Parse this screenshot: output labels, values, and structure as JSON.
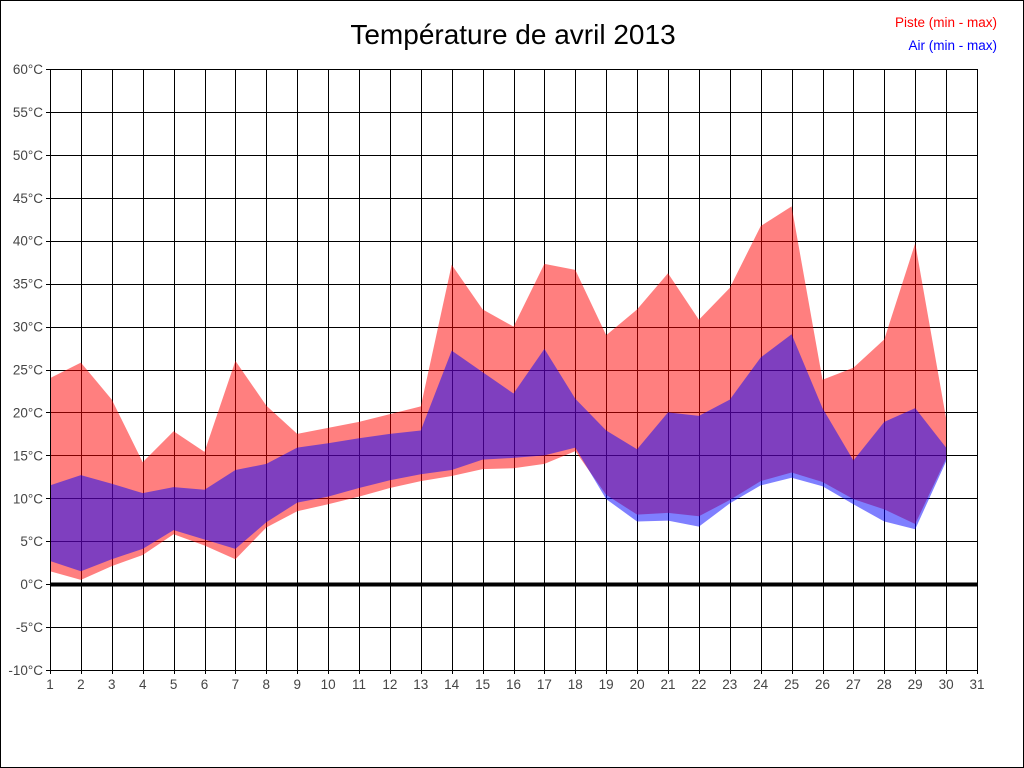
{
  "title": "Température de avril 2013",
  "legend": {
    "piste": "Piste (min - max)",
    "air": "Air (min - max)"
  },
  "colors": {
    "piste_line": "#ff0000",
    "air_line": "#0000ff",
    "piste_band": "rgba(255,0,0,0.5)",
    "air_band": "rgba(0,0,255,0.5)",
    "grid": "#000000",
    "zero_line": "#000000",
    "tick_label": "#454545",
    "border": "#000000"
  },
  "chart_data": {
    "type": "area",
    "title": "Température de avril 2013",
    "xlabel": "",
    "ylabel": "",
    "xlim": [
      1,
      31
    ],
    "ylim": [
      -10,
      60
    ],
    "grid": true,
    "zero_line": 0,
    "legend_position": "top-right",
    "x_ticks": [
      "1",
      "2",
      "3",
      "4",
      "5",
      "6",
      "7",
      "8",
      "9",
      "10",
      "11",
      "12",
      "13",
      "14",
      "15",
      "16",
      "17",
      "18",
      "19",
      "20",
      "21",
      "22",
      "23",
      "24",
      "25",
      "26",
      "27",
      "28",
      "29",
      "30",
      "31"
    ],
    "y_ticks": [
      {
        "value": 60,
        "label": "60°C"
      },
      {
        "value": 55,
        "label": "55°C"
      },
      {
        "value": 50,
        "label": "50°C"
      },
      {
        "value": 45,
        "label": "45°C"
      },
      {
        "value": 40,
        "label": "40°C"
      },
      {
        "value": 35,
        "label": "35°C"
      },
      {
        "value": 30,
        "label": "30°C"
      },
      {
        "value": 25,
        "label": "25°C"
      },
      {
        "value": 20,
        "label": "20°C"
      },
      {
        "value": 15,
        "label": "15°C"
      },
      {
        "value": 10,
        "label": "10°C"
      },
      {
        "value": 5,
        "label": "5°C"
      },
      {
        "value": 0,
        "label": "0°C"
      },
      {
        "value": -5,
        "label": "-5°C"
      },
      {
        "value": -10,
        "label": "-10°C"
      }
    ],
    "days": [
      1,
      2,
      3,
      4,
      5,
      6,
      7,
      8,
      9,
      10,
      11,
      12,
      13,
      14,
      15,
      16,
      17,
      18,
      19,
      20,
      21,
      22,
      23,
      24,
      25,
      26,
      27,
      28,
      29,
      30
    ],
    "series": [
      {
        "name": "Piste (min - max)",
        "min": [
          1.5,
          0.5,
          2.1,
          3.4,
          5.8,
          4.5,
          2.9,
          6.6,
          8.5,
          9.3,
          10.2,
          11.2,
          12.0,
          12.6,
          13.4,
          13.5,
          14.0,
          15.5,
          10.4,
          8.1,
          8.3,
          7.9,
          9.8,
          12.0,
          13.0,
          11.9,
          9.9,
          8.7,
          7.0,
          14.6
        ],
        "max": [
          24.0,
          25.8,
          21.5,
          14.2,
          17.8,
          15.4,
          26.0,
          20.8,
          17.5,
          18.2,
          18.9,
          19.8,
          20.7,
          37.2,
          32.0,
          30.0,
          37.3,
          36.6,
          29.0,
          32.0,
          36.2,
          30.8,
          34.5,
          41.7,
          44.0,
          23.8,
          25.2,
          28.5,
          39.7,
          19.3
        ]
      },
      {
        "name": "Air (min - max)",
        "min": [
          2.7,
          1.5,
          2.9,
          4.1,
          6.3,
          5.2,
          4.1,
          7.2,
          9.5,
          10.2,
          11.2,
          12.1,
          12.8,
          13.3,
          14.5,
          14.7,
          15.0,
          15.9,
          9.9,
          7.3,
          7.4,
          6.7,
          9.4,
          11.5,
          12.4,
          11.4,
          9.3,
          7.3,
          6.4,
          14.3
        ],
        "max": [
          11.5,
          12.7,
          11.7,
          10.6,
          11.3,
          11.0,
          13.3,
          14.0,
          15.9,
          16.4,
          17.0,
          17.5,
          17.9,
          27.2,
          24.7,
          22.2,
          27.4,
          21.6,
          17.9,
          15.7,
          20.0,
          19.6,
          21.5,
          26.4,
          29.1,
          20.5,
          14.4,
          18.9,
          20.5,
          15.9
        ]
      }
    ]
  }
}
